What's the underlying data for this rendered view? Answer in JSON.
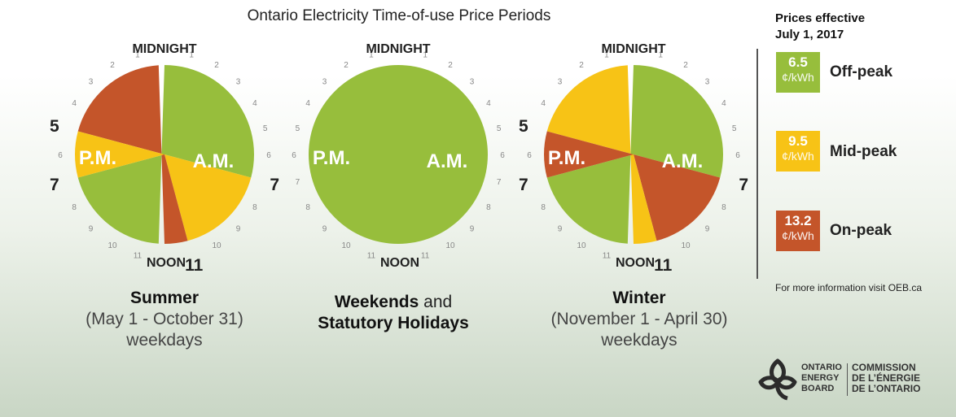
{
  "title": "Ontario Electricity Time-of-use Price Periods",
  "colors": {
    "off_peak": "#97be3c",
    "mid_peak": "#f7c316",
    "on_peak": "#c4552a",
    "tick_number": "#888888"
  },
  "labels": {
    "midnight": "MIDNIGHT",
    "noon": "NOON",
    "am": "A.M.",
    "pm": "P.M."
  },
  "tick_hours": [
    "1",
    "2",
    "3",
    "4",
    "5",
    "6",
    "7",
    "8",
    "9",
    "10",
    "11"
  ],
  "clocks": [
    {
      "caption_line1": "Summer",
      "caption_line2": "(May 1 - October 31)",
      "caption_line3": "weekdays",
      "emphasized_hours": [
        {
          "hour": 7,
          "side": "am",
          "text": "7"
        },
        {
          "hour": 11,
          "side": "am",
          "text": "11"
        },
        {
          "hour": 5,
          "side": "pm",
          "text": "5"
        },
        {
          "hour": 7,
          "side": "pm",
          "text": "7"
        }
      ],
      "segments": [
        {
          "from": 19,
          "to": 31,
          "period": "off_peak"
        },
        {
          "from": 7,
          "to": 11,
          "period": "mid_peak"
        },
        {
          "from": 11,
          "to": 17,
          "period": "on_peak"
        },
        {
          "from": 17,
          "to": 19,
          "period": "mid_peak"
        }
      ]
    },
    {
      "caption_line1": "Weekends",
      "caption_line1_suffix": " and",
      "caption_line2": "Statutory Holidays",
      "caption_line3": "",
      "emphasized_hours": [],
      "segments": [
        {
          "from": 0,
          "to": 24,
          "period": "off_peak"
        }
      ]
    },
    {
      "caption_line1": "Winter",
      "caption_line2": "(November 1 - April 30)",
      "caption_line3": "weekdays",
      "emphasized_hours": [
        {
          "hour": 7,
          "side": "am",
          "text": "7"
        },
        {
          "hour": 11,
          "side": "am",
          "text": "11"
        },
        {
          "hour": 5,
          "side": "pm",
          "text": "5"
        },
        {
          "hour": 7,
          "side": "pm",
          "text": "7"
        }
      ],
      "segments": [
        {
          "from": 19,
          "to": 31,
          "period": "off_peak"
        },
        {
          "from": 7,
          "to": 11,
          "period": "on_peak"
        },
        {
          "from": 11,
          "to": 17,
          "period": "mid_peak"
        },
        {
          "from": 17,
          "to": 19,
          "period": "on_peak"
        }
      ]
    }
  ],
  "legend": {
    "heading_line1": "Prices effective",
    "heading_line2": "July 1, 2017",
    "unit": "¢/kWh",
    "items": [
      {
        "price": "6.5",
        "label": "Off-peak",
        "period": "off_peak"
      },
      {
        "price": "9.5",
        "label": "Mid-peak",
        "period": "mid_peak"
      },
      {
        "price": "13.2",
        "label": "On-peak",
        "period": "on_peak"
      }
    ],
    "more_info": "For more information visit OEB.ca"
  },
  "logo": {
    "en_line1": "ONTARIO",
    "en_line2": "ENERGY",
    "en_line3": "BOARD",
    "fr_line1": "COMMISSION",
    "fr_line2": "DE L’ÉNERGIE",
    "fr_line3": "DE L’ONTARIO"
  }
}
